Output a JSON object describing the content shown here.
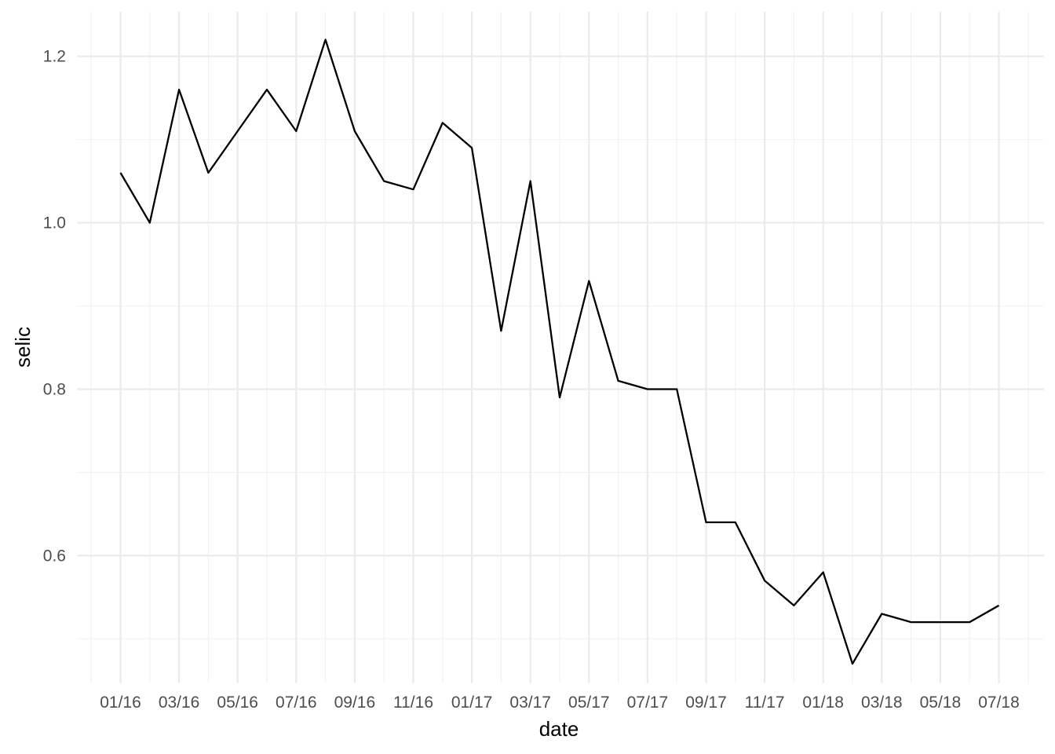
{
  "chart_data": {
    "type": "line",
    "xlabel": "date",
    "ylabel": "selic",
    "x": [
      "2016-01",
      "2016-02",
      "2016-03",
      "2016-04",
      "2016-05",
      "2016-06",
      "2016-07",
      "2016-08",
      "2016-09",
      "2016-10",
      "2016-11",
      "2016-12",
      "2017-01",
      "2017-02",
      "2017-03",
      "2017-04",
      "2017-05",
      "2017-06",
      "2017-07",
      "2017-08",
      "2017-09",
      "2017-10",
      "2017-11",
      "2017-12",
      "2018-01",
      "2018-02",
      "2018-03",
      "2018-04",
      "2018-05",
      "2018-06",
      "2018-07"
    ],
    "values": [
      1.06,
      1.0,
      1.16,
      1.06,
      1.11,
      1.16,
      1.11,
      1.22,
      1.11,
      1.05,
      1.04,
      1.12,
      1.09,
      0.87,
      1.05,
      0.79,
      0.93,
      0.81,
      0.8,
      0.8,
      0.64,
      0.64,
      0.57,
      0.54,
      0.58,
      0.47,
      0.53,
      0.52,
      0.52,
      0.52,
      0.54
    ],
    "x_tick_labels": [
      "01/16",
      "03/16",
      "05/16",
      "07/16",
      "09/16",
      "11/16",
      "01/17",
      "03/17",
      "05/17",
      "07/17",
      "09/17",
      "11/17",
      "01/18",
      "03/18",
      "05/18",
      "07/18"
    ],
    "y_ticks": [
      0.6,
      0.8,
      1.0,
      1.2
    ],
    "y_tick_labels": [
      "0.6",
      "0.8",
      "1.0",
      "1.2"
    ],
    "ylim": [
      0.4465,
      1.2535
    ],
    "grid": true,
    "line_color": "#000000"
  }
}
